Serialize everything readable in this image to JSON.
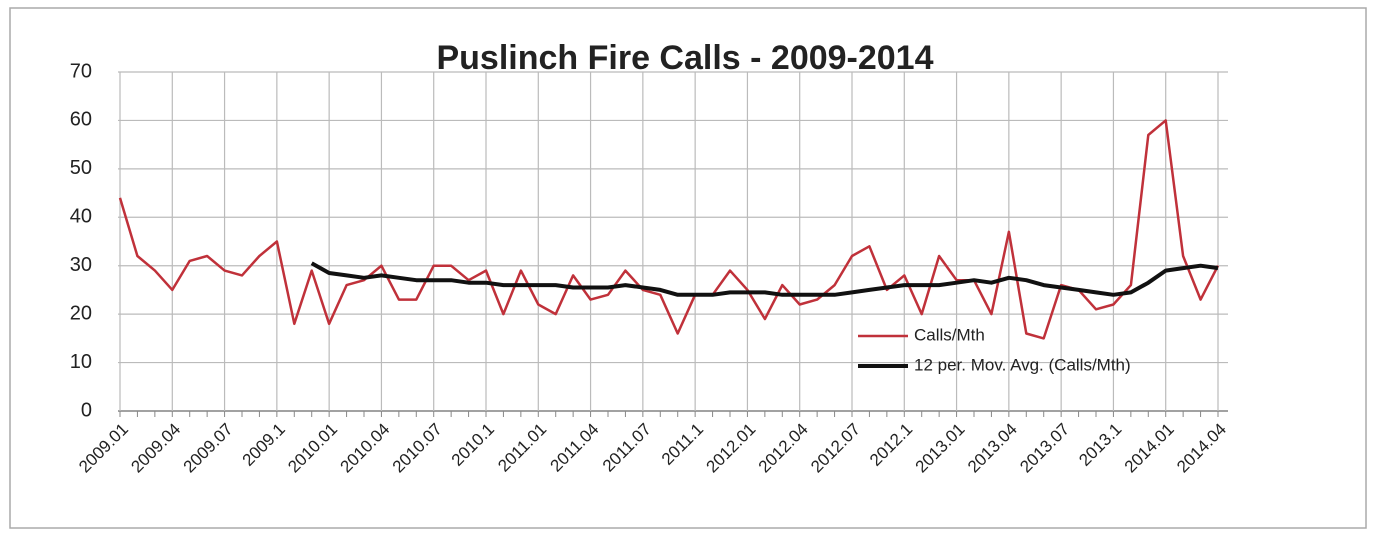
{
  "chart_data": {
    "type": "line",
    "title": "Puslinch Fire Calls - 2009-2014",
    "categories": [
      "2009.01",
      null,
      null,
      "2009.04",
      null,
      null,
      "2009.07",
      null,
      null,
      "2009.1",
      null,
      null,
      "2010.01",
      null,
      null,
      "2010.04",
      null,
      null,
      "2010.07",
      null,
      null,
      "2010.1",
      null,
      null,
      "2011.01",
      null,
      null,
      "2011.04",
      null,
      null,
      "2011.07",
      null,
      null,
      "2011.1",
      null,
      null,
      "2012.01",
      null,
      null,
      "2012.04",
      null,
      null,
      "2012.07",
      null,
      null,
      "2012.1",
      null,
      null,
      "2013.01",
      null,
      null,
      "2013.04",
      null,
      null,
      "2013.07",
      null,
      null,
      "2013.1",
      null,
      null,
      "2014.01",
      null,
      null,
      "2014.04"
    ],
    "series": [
      {
        "name": "Calls/Mth",
        "color": "#c0313a",
        "values": [
          44,
          32,
          29,
          25,
          31,
          32,
          29,
          28,
          32,
          35,
          18,
          29,
          18,
          26,
          27,
          30,
          23,
          23,
          30,
          30,
          27,
          29,
          20,
          29,
          22,
          20,
          28,
          23,
          24,
          29,
          25,
          24,
          16,
          24,
          24,
          29,
          25,
          19,
          26,
          22,
          23,
          26,
          32,
          34,
          25,
          28,
          20,
          32,
          27,
          27,
          20,
          37,
          16,
          15,
          26,
          25,
          21,
          22,
          26,
          57,
          60,
          32,
          23,
          30
        ]
      },
      {
        "name": "12 per. Mov. Avg. (Calls/Mth)",
        "color": "#111111",
        "values": [
          null,
          null,
          null,
          null,
          null,
          null,
          null,
          null,
          null,
          null,
          null,
          30.5,
          28.5,
          28,
          27.5,
          28,
          27.5,
          27,
          27,
          27,
          26.5,
          26.5,
          26,
          26,
          26,
          26,
          25.5,
          25.5,
          25.5,
          26,
          25.5,
          25,
          24,
          24,
          24,
          24.5,
          24.5,
          24.5,
          24,
          24,
          24,
          24,
          24.5,
          25,
          25.5,
          26,
          26,
          26,
          26.5,
          27,
          26.5,
          27.5,
          27,
          26,
          25.5,
          25,
          24.5,
          24,
          24.5,
          26.5,
          29,
          29.5,
          30,
          29.5
        ]
      }
    ],
    "ylim": [
      0,
      70
    ],
    "yticks": [
      0,
      10,
      20,
      30,
      40,
      50,
      60,
      70
    ],
    "grid": true,
    "legend": "center-right"
  }
}
